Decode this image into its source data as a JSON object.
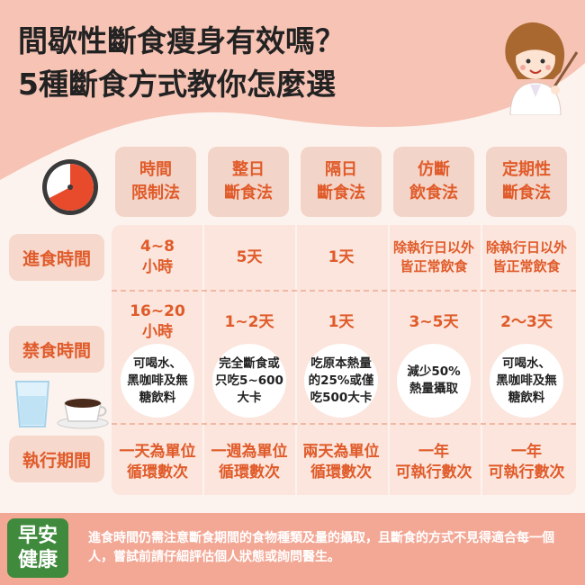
{
  "title": {
    "line1": "間歇性斷食瘦身有效嗎？",
    "line2": "5種斷食方式教你怎麼選"
  },
  "columns": [
    {
      "label": "時間\n限制法"
    },
    {
      "label": "整日\n斷食法"
    },
    {
      "label": "隔日\n斷食法"
    },
    {
      "label": "仿斷\n飲食法"
    },
    {
      "label": "定期性\n斷食法"
    }
  ],
  "rows": {
    "eating": {
      "label": "進食時間",
      "cells": [
        "4~8\n小時",
        "5天",
        "1天",
        "除執行日以外\n皆正常飲食",
        "除執行日以外\n皆正常飲食"
      ]
    },
    "fasting": {
      "label": "禁食時間",
      "cells": [
        "16~20\n小時",
        "1~2天",
        "1天",
        "3~5天",
        "2～3天"
      ],
      "notes": [
        "可喝水、\n黑咖啡及無\n糖飲料",
        "完全斷食或\n只吃5~600\n大卡",
        "吃原本熱量\n的25%或僅\n吃500大卡",
        "減少50%\n熱量攝取",
        "可喝水、\n黑咖啡及無\n糖飲料"
      ]
    },
    "period": {
      "label": "執行期間",
      "cells": [
        "一天為單位\n循環數次",
        "一週為單位\n循環數次",
        "兩天為單位\n循環數次",
        "一年\n可執行數次",
        "一年\n可執行數次"
      ]
    }
  },
  "footer": {
    "logo_line1": "早安",
    "logo_line2": "健康",
    "note": "進食時間仍需注意斷食期間的食物種類及量的攝取，且斷食的方式不見得適合每一個人，嘗試前請仔細評估個人狀態或詢問醫生。"
  },
  "colors": {
    "accent": "#e05b2a",
    "header_bg": "#f3d4c8",
    "table_bg": "#fbe5dc",
    "footer_bg": "#f3a896",
    "logo_bg": "#3f8a3c"
  }
}
